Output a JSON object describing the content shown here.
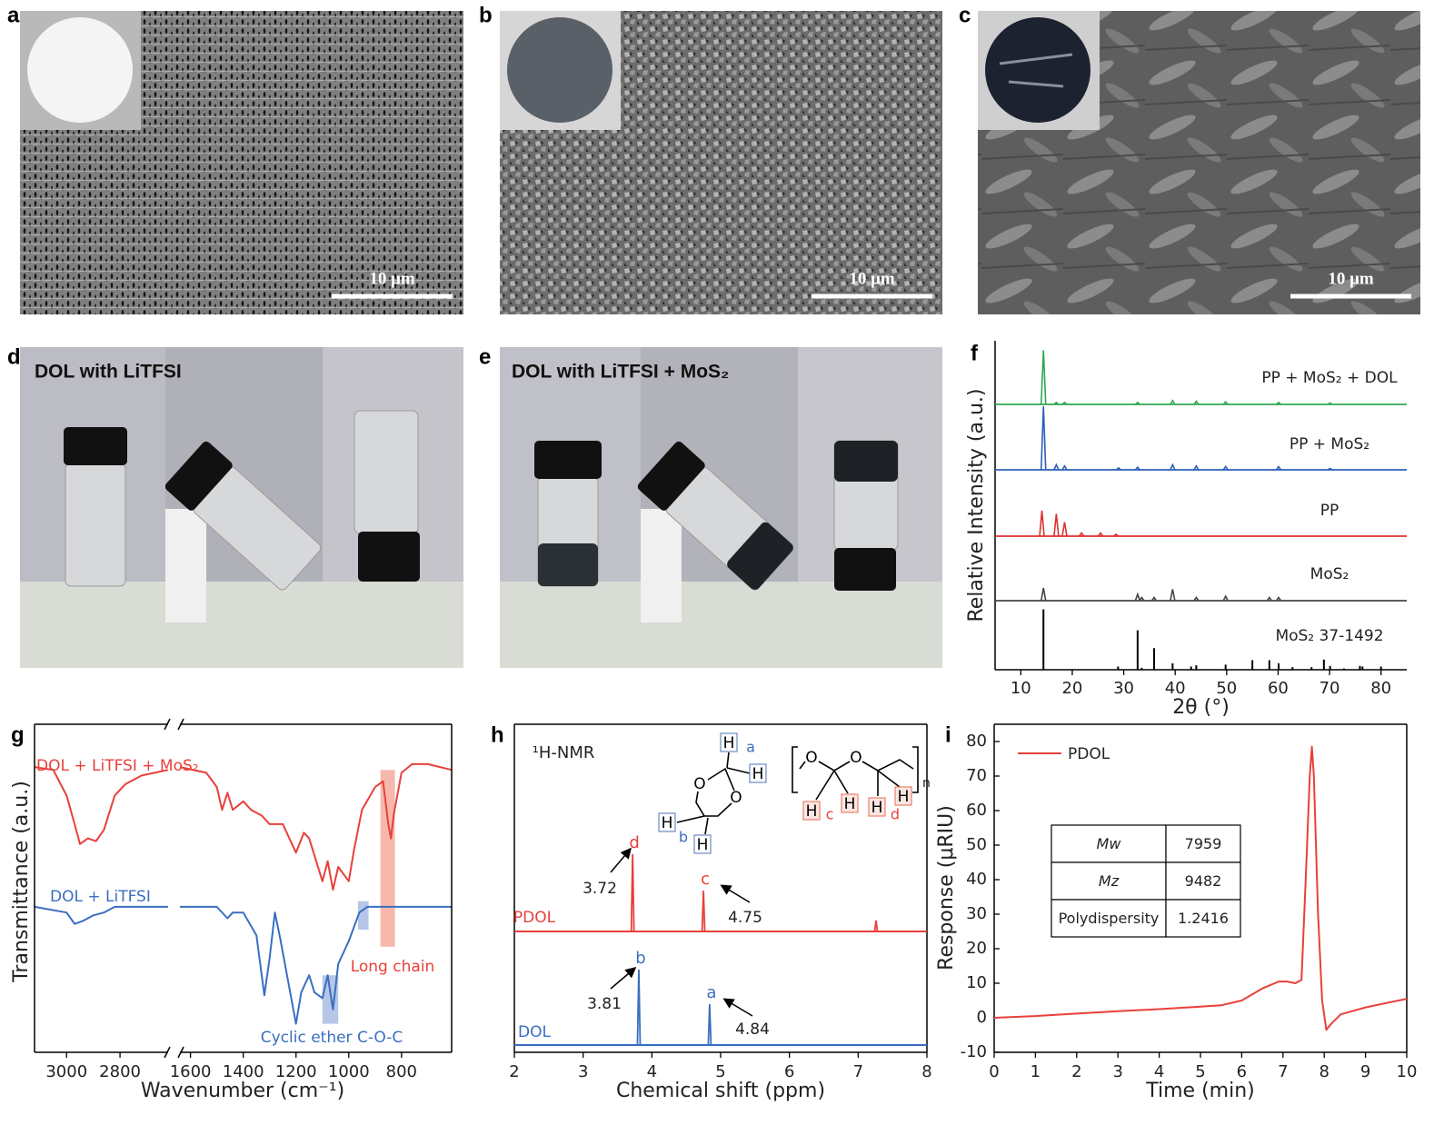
{
  "panels": [
    {
      "label": "a",
      "scale_bar": "10 μm"
    },
    {
      "label": "b",
      "scale_bar": "10 μm"
    },
    {
      "label": "c",
      "scale_bar": "10 μm"
    },
    {
      "label": "d",
      "caption": "DOL with LiTFSI"
    },
    {
      "label": "e",
      "caption": "DOL with LiTFSI + MoS₂"
    }
  ],
  "chart_data": [
    {
      "type": "stick-spectrum",
      "label": "f",
      "x_label": "2θ (°)",
      "y_label": "Relative Intensity (a.u.)",
      "xlim": [
        5,
        85
      ],
      "xticks": [
        10,
        20,
        30,
        40,
        50,
        60,
        70,
        80
      ],
      "series": [
        {
          "name": "PP + MoS₂ + DOL",
          "color": "#2fa84f",
          "x": [
            14.4,
            16.9,
            18.5,
            32.7,
            39.5,
            44.1,
            49.8,
            60.1,
            70.1
          ],
          "values": [
            85,
            3,
            3,
            3,
            6,
            5,
            4,
            3,
            2
          ]
        },
        {
          "name": "PP + MoS₂",
          "color": "#2b60b8",
          "x": [
            14.4,
            16.9,
            18.5,
            29,
            32.7,
            39.5,
            44.1,
            49.8,
            60.1,
            70.1
          ],
          "values": [
            100,
            8,
            6,
            3,
            4,
            8,
            6,
            5,
            5,
            2
          ]
        },
        {
          "name": "PP",
          "color": "#e03030",
          "x": [
            14.1,
            16.9,
            18.5,
            21.8,
            25.5,
            28.5
          ],
          "values": [
            40,
            35,
            22,
            5,
            5,
            3
          ]
        },
        {
          "name": "MoS₂",
          "color": "#444444",
          "x": [
            14.4,
            32.7,
            33.5,
            35.9,
            39.5,
            44.1,
            49.8,
            58.3,
            60.1
          ],
          "values": [
            20,
            10,
            5,
            5,
            18,
            5,
            7,
            5,
            5
          ]
        },
        {
          "name": "MoS₂ 37-1492",
          "color": "#000000",
          "sticks": true,
          "x": [
            14.4,
            28.9,
            32.7,
            33.5,
            35.9,
            39.5,
            43.1,
            44.1,
            49.8,
            55.0,
            58.3,
            60.1,
            62.8,
            66.5,
            68.9,
            70.1,
            72.8,
            75.9,
            76.4,
            80.0
          ],
          "values": [
            95,
            5,
            62,
            3,
            34,
            10,
            5,
            7,
            8,
            15,
            15,
            10,
            4,
            4,
            16,
            6,
            2,
            6,
            5,
            5
          ]
        }
      ]
    },
    {
      "type": "line",
      "label": "g",
      "x_label": "Wavenumber (cm⁻¹)",
      "y_label": "Transmittance (a.u.)",
      "xlim": [
        3120,
        610
      ],
      "xbreak": [
        2620,
        1640
      ],
      "xticks": [
        3000,
        2800,
        1600,
        1400,
        1200,
        1000,
        800
      ],
      "ylim": [
        -5,
        110
      ],
      "series": [
        {
          "name": "DOL + LiTFSI + MoS₂",
          "color": "#e8403a",
          "x": [
            3120,
            3050,
            3000,
            2970,
            2950,
            2920,
            2890,
            2860,
            2820,
            2780,
            2720,
            2620,
            null,
            1640,
            1540,
            1500,
            1480,
            1460,
            1440,
            1400,
            1370,
            1330,
            1300,
            1250,
            1200,
            1170,
            1150,
            1100,
            1080,
            1060,
            1040,
            1000,
            980,
            950,
            900,
            870,
            850,
            840,
            830,
            800,
            760,
            700,
            610
          ],
          "values": [
            95,
            94,
            85,
            75,
            68,
            70,
            69,
            73,
            85,
            89,
            92,
            94,
            null,
            95,
            93,
            88,
            80,
            86,
            80,
            83,
            80,
            78,
            75,
            75,
            65,
            72,
            70,
            55,
            62,
            52,
            60,
            55,
            66,
            80,
            88,
            90,
            75,
            70,
            78,
            93,
            96,
            96,
            94
          ]
        },
        {
          "name": "DOL + LiTFSI",
          "color": "#3a6fc0",
          "x": [
            3120,
            3000,
            2970,
            2940,
            2900,
            2860,
            2820,
            2700,
            2620,
            null,
            1640,
            1500,
            1460,
            1440,
            1400,
            1350,
            1320,
            1300,
            1280,
            1260,
            1220,
            1200,
            1180,
            1150,
            1130,
            1100,
            1080,
            1060,
            1040,
            1000,
            960,
            930,
            900,
            850,
            800,
            700,
            610
          ],
          "values": [
            46,
            44,
            40,
            41,
            43,
            44,
            46,
            46,
            46,
            null,
            46,
            46,
            42,
            44,
            44,
            36,
            15,
            28,
            44,
            35,
            15,
            5,
            16,
            22,
            16,
            14,
            22,
            10,
            26,
            34,
            44,
            46,
            46,
            46,
            46,
            46,
            46
          ]
        }
      ],
      "highlights": [
        {
          "name": "Long chain",
          "color": "#f4a090",
          "x": [
            880,
            825
          ],
          "y": [
            32,
            94
          ]
        },
        {
          "name": "Cyclic ether C-O-C",
          "color": "#9fb3e0",
          "x": [
            1100,
            1040
          ],
          "y": [
            5,
            22
          ]
        },
        {
          "color": "#9fb3e0",
          "x": [
            965,
            925
          ],
          "y": [
            38,
            48
          ]
        }
      ]
    },
    {
      "type": "nmr",
      "label": "h",
      "title": "¹H-NMR",
      "x_label": "Chemical shift (ppm)",
      "xlim": [
        2,
        8
      ],
      "xticks": [
        2,
        3,
        4,
        5,
        6,
        7,
        8
      ],
      "series": [
        {
          "name": "PDOL",
          "color": "#e8403a",
          "x": [
            3.72,
            4.75,
            7.26
          ],
          "values": [
            85,
            45,
            12
          ],
          "peak_labels": [
            "d",
            "c",
            null
          ]
        },
        {
          "name": "DOL",
          "color": "#3a6fc0",
          "x": [
            3.81,
            4.84
          ],
          "values": [
            83,
            45
          ],
          "peak_labels": [
            "b",
            "a"
          ]
        }
      ],
      "structures": [
        {
          "atoms": [
            "H",
            "H",
            "O",
            "O",
            "H",
            "H"
          ],
          "tags": [
            "a",
            "b"
          ]
        },
        {
          "atoms": [
            "O",
            "O",
            "H",
            "H",
            "H",
            "H"
          ],
          "tags": [
            "c",
            "d"
          ],
          "repeat": "n"
        }
      ]
    },
    {
      "type": "line",
      "label": "i",
      "x_label": "Time (min)",
      "y_label": "Response (μRIU)",
      "xlim": [
        0,
        10
      ],
      "xticks": [
        0,
        1,
        2,
        3,
        4,
        5,
        6,
        7,
        8,
        9,
        10
      ],
      "ylim": [
        -10,
        85
      ],
      "yticks": [
        -10,
        0,
        10,
        20,
        30,
        40,
        50,
        60,
        70,
        80
      ],
      "series": [
        {
          "name": "PDOL",
          "color": "#e8403a",
          "x": [
            0,
            1,
            2,
            3,
            4,
            5,
            5.5,
            6,
            6.5,
            6.9,
            7.1,
            7.3,
            7.45,
            7.55,
            7.65,
            7.7,
            7.75,
            7.85,
            7.95,
            8.05,
            8.15,
            8.4,
            9,
            10
          ],
          "values": [
            0,
            0.5,
            1.2,
            1.9,
            2.5,
            3.2,
            3.6,
            5,
            8.5,
            10.5,
            10.5,
            10,
            11,
            40,
            70,
            78.5,
            70,
            30,
            5,
            -3.5,
            -2,
            1,
            3,
            5.5
          ]
        }
      ],
      "table": {
        "rows": [
          [
            "Mw",
            "7959"
          ],
          [
            "Mz",
            "9482"
          ],
          [
            "Polydispersity",
            "1.2416"
          ]
        ]
      }
    }
  ]
}
